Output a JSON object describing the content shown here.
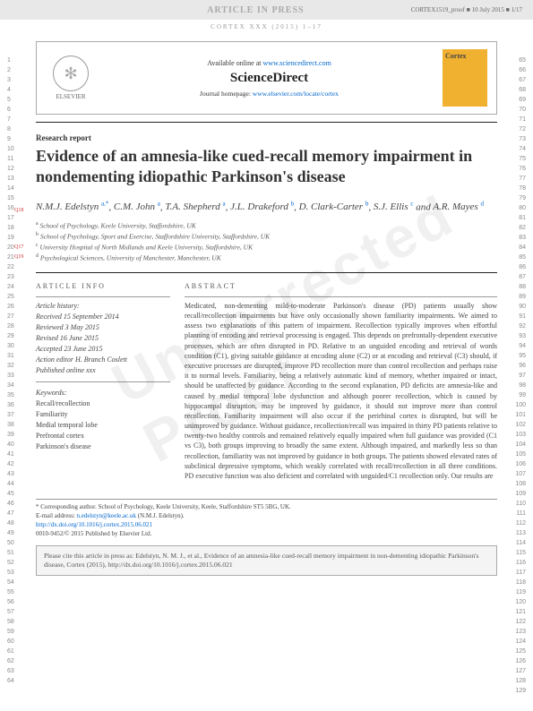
{
  "header": {
    "articleInPress": "ARTICLE IN PRESS",
    "proof": "CORTEX1519_proof ■ 10 July 2015 ■ 1/17",
    "journalLine": "CORTEX XXX (2015) 1–17"
  },
  "availability": {
    "availableText": "Available online at ",
    "availableLink": "www.sciencedirect.com",
    "sciencedirect": "ScienceDirect",
    "homepageLabel": "Journal homepage: ",
    "homepageLink": "www.elsevier.com/locate/cortex",
    "elsevierLabel": "ELSEVIER",
    "coverTitle": "Cortex"
  },
  "article": {
    "type": "Research report",
    "title": "Evidence of an amnesia-like cued-recall memory impairment in nondementing idiopathic Parkinson's disease",
    "authorsHtml": "N.M.J. Edelstyn",
    "authors": [
      {
        "name": "N.M.J. Edelstyn",
        "sup": "a,*"
      },
      {
        "name": "C.M. John",
        "sup": "a"
      },
      {
        "name": "T.A. Shepherd",
        "sup": "a"
      },
      {
        "name": "J.L. Drakeford",
        "sup": "b"
      },
      {
        "name": "D. Clark-Carter",
        "sup": "b"
      },
      {
        "name": "S.J. Ellis",
        "sup": "c"
      },
      {
        "name": "A.R. Mayes",
        "sup": "d"
      }
    ],
    "affiliations": [
      {
        "sup": "a",
        "text": "School of Psychology, Keele University, Staffordshire, UK"
      },
      {
        "sup": "b",
        "text": "School of Psychology, Sport and Exercise, Staffordshire University, Staffordshire, UK"
      },
      {
        "sup": "c",
        "text": "University Hospital of North Midlands and Keele University, Staffordshire, UK"
      },
      {
        "sup": "d",
        "text": "Psychological Sciences, University of Manchester, Manchester, UK"
      }
    ]
  },
  "info": {
    "heading": "ARTICLE INFO",
    "historyLabel": "Article history:",
    "received": "Received 15 September 2014",
    "reviewed": "Reviewed 3 May 2015",
    "revised": "Revised 16 June 2015",
    "accepted": "Accepted 23 June 2015",
    "actionEditor": "Action editor H. Branch Coslett",
    "published": "Published online xxx",
    "keywordsLabel": "Keywords:",
    "keywords": [
      "Recall/recollection",
      "Familiarity",
      "Medial temporal lobe",
      "Prefrontal cortex",
      "Parkinson's disease"
    ]
  },
  "abstract": {
    "heading": "ABSTRACT",
    "text": "Medicated, non-dementing mild-to-moderate Parkinson's disease (PD) patients usually show recall/recollection impairments but have only occasionally shown familiarity impairments. We aimed to assess two explanations of this pattern of impairment. Recollection typically improves when effortful planning of encoding and retrieval processing is engaged. This depends on prefrontally-dependent executive processes, which are often disrupted in PD. Relative to an unguided encoding and retrieval of words condition (C1), giving suitable guidance at encoding alone (C2) or at encoding and retrieval (C3) should, if executive processes are disrupted, improve PD recollection more than control recollection and perhaps raise it to normal levels. Familiarity, being a relatively automatic kind of memory, whether impaired or intact, should be unaffected by guidance. According to the second explanation, PD deficits are amnesia-like and caused by medial temporal lobe dysfunction and although poorer recollection, which is caused by hippocampal disruption, may be improved by guidance, it should not improve more than control recollection. Familiarity impairment will also occur if the perirhinal cortex is disrupted, but will be unimproved by guidance. Without guidance, recollection/recall was impaired in thirty PD patients relative to twenty-two healthy controls and remained relatively equally impaired when full guidance was provided (C1 vs C3), both groups improving to broadly the same extent. Although impaired, and markedly less so than recollection, familiarity was not improved by guidance in both groups. The patients showed elevated rates of subclinical depressive symptoms, which weakly correlated with recall/recollection in all three conditions. PD executive function was also deficient and correlated with unguided/C1 recollection only. Our results are"
  },
  "footer": {
    "correspLabel": "* Corresponding author. School of Psychology, Keele University, Keele, Staffordshire ST5 5BG, UK.",
    "emailLabel": "E-mail address: ",
    "email": "n.edelstyn@keele.ac.uk",
    "emailSuffix": " (N.M.J. Edelstyn).",
    "doi": "http://dx.doi.org/10.1016/j.cortex.2015.06.021",
    "copyright": "0010-9452/© 2015  Published by Elsevier Ltd.",
    "citeBox": "Please cite this article in press as: Edelstyn, N. M. J., et al., Evidence of an amnesia-like cued-recall memory impairment in non-dementing idiopathic Parkinson's disease, Cortex (2015), http://dx.doi.org/10.1016/j.cortex.2015.06.021"
  },
  "lineNumbers": {
    "leftStart": 1,
    "leftEnd": 64,
    "rightStart": 65,
    "rightEnd": 129
  },
  "qMarks": [
    "Q18",
    "Q17",
    "Q19"
  ],
  "watermark": "Uncorrected Proof",
  "colors": {
    "link": "#0066cc",
    "headerBg": "#e8e8e8",
    "coverBg": "#f0b030"
  }
}
